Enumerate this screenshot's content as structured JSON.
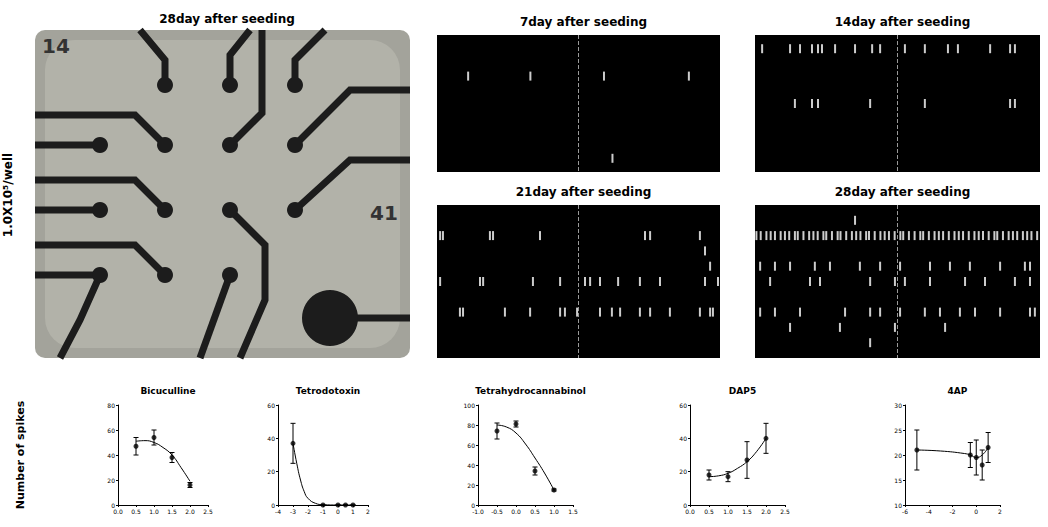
{
  "image_panel": {
    "title": "28day after seeding",
    "row_label": "1.0X10⁵/well",
    "electrode_labels": [
      "14",
      "41"
    ]
  },
  "chart_data": [
    {
      "type": "raster",
      "title": "7day after seeding",
      "xlim": [
        0,
        100
      ],
      "ylim": [
        0,
        10
      ],
      "tick_labels": false,
      "color": "#ffffff",
      "reference_line": 50,
      "points": [
        [
          11,
          3
        ],
        [
          33,
          3
        ],
        [
          59,
          3
        ],
        [
          89,
          3
        ],
        [
          62,
          9
        ]
      ]
    },
    {
      "type": "raster",
      "title": "14day after seeding",
      "xlim": [
        0,
        100
      ],
      "ylim": [
        0,
        10
      ],
      "tick_labels": false,
      "color": "#ffffff",
      "reference_line": 50,
      "points": [
        [
          2.5,
          1
        ],
        [
          12.3,
          1
        ],
        [
          15.8,
          1
        ],
        [
          20,
          1
        ],
        [
          22.1,
          1
        ],
        [
          23.5,
          1
        ],
        [
          28.1,
          1
        ],
        [
          35.1,
          1
        ],
        [
          41.1,
          1
        ],
        [
          43.9,
          1
        ],
        [
          52.6,
          1
        ],
        [
          59.6,
          1
        ],
        [
          67.7,
          1
        ],
        [
          71.2,
          1
        ],
        [
          82.5,
          1
        ],
        [
          89.5,
          1
        ],
        [
          91.2,
          1
        ],
        [
          14,
          5
        ],
        [
          20,
          5
        ],
        [
          22.1,
          5
        ],
        [
          40.4,
          5
        ],
        [
          59.6,
          5
        ],
        [
          89.5,
          5
        ],
        [
          91.2,
          5
        ]
      ]
    },
    {
      "type": "raster",
      "title": "21day after seeding",
      "xlim": [
        0,
        100
      ],
      "ylim": [
        0,
        10
      ],
      "tick_labels": false,
      "color": "#ffffff",
      "reference_line": 50,
      "points": [
        [
          1.1,
          2
        ],
        [
          2.1,
          2
        ],
        [
          18.7,
          2
        ],
        [
          19.8,
          2
        ],
        [
          36.4,
          2
        ],
        [
          73.5,
          2
        ],
        [
          75.3,
          2
        ],
        [
          92.9,
          2
        ],
        [
          94.7,
          3
        ],
        [
          96.5,
          4
        ],
        [
          1.1,
          5
        ],
        [
          15.2,
          5
        ],
        [
          16.3,
          5
        ],
        [
          33.9,
          5
        ],
        [
          43.5,
          5
        ],
        [
          52.3,
          5
        ],
        [
          54.1,
          5
        ],
        [
          57.6,
          5
        ],
        [
          64,
          5
        ],
        [
          71.7,
          5
        ],
        [
          78.8,
          5
        ],
        [
          94.7,
          5
        ],
        [
          99.3,
          5
        ],
        [
          8.1,
          7
        ],
        [
          9.2,
          7
        ],
        [
          24,
          7
        ],
        [
          32.9,
          7
        ],
        [
          43.5,
          7
        ],
        [
          45.2,
          7
        ],
        [
          49.5,
          7
        ],
        [
          57.6,
          7
        ],
        [
          61.8,
          7
        ],
        [
          64.7,
          7
        ],
        [
          71.7,
          7
        ],
        [
          75.3,
          7
        ],
        [
          82.3,
          7
        ],
        [
          92.9,
          7
        ],
        [
          96.5,
          7
        ],
        [
          97.5,
          7
        ]
      ]
    },
    {
      "type": "raster",
      "title": "28day after seeding",
      "xlim": [
        0,
        100
      ],
      "ylim": [
        0,
        10
      ],
      "tick_labels": false,
      "color": "#ffffff",
      "reference_line": 50,
      "points": [
        [
          35.1,
          1
        ],
        [
          0.5,
          2
        ],
        [
          2,
          2
        ],
        [
          4,
          2
        ],
        [
          5.5,
          2
        ],
        [
          7,
          2
        ],
        [
          9,
          2
        ],
        [
          10.5,
          2
        ],
        [
          12,
          2
        ],
        [
          14,
          2
        ],
        [
          15,
          2
        ],
        [
          17,
          2
        ],
        [
          19,
          2
        ],
        [
          20.5,
          2
        ],
        [
          22,
          2
        ],
        [
          24,
          2
        ],
        [
          25,
          2
        ],
        [
          27,
          2
        ],
        [
          29,
          2
        ],
        [
          30,
          2
        ],
        [
          32,
          2
        ],
        [
          34,
          2
        ],
        [
          35.5,
          2
        ],
        [
          37,
          2
        ],
        [
          39,
          2
        ],
        [
          40,
          2
        ],
        [
          42,
          2
        ],
        [
          44,
          2
        ],
        [
          45.5,
          2
        ],
        [
          47,
          2
        ],
        [
          49,
          2
        ],
        [
          51,
          2
        ],
        [
          52,
          2
        ],
        [
          54,
          2
        ],
        [
          56,
          2
        ],
        [
          58,
          2
        ],
        [
          59,
          2
        ],
        [
          61,
          2
        ],
        [
          63,
          2
        ],
        [
          64.5,
          2
        ],
        [
          66,
          2
        ],
        [
          68,
          2
        ],
        [
          70,
          2
        ],
        [
          71.5,
          2
        ],
        [
          73,
          2
        ],
        [
          75,
          2
        ],
        [
          77,
          2
        ],
        [
          78.5,
          2
        ],
        [
          80,
          2
        ],
        [
          82,
          2
        ],
        [
          84,
          2
        ],
        [
          85,
          2
        ],
        [
          87,
          2
        ],
        [
          89,
          2
        ],
        [
          90.5,
          2
        ],
        [
          92,
          2
        ],
        [
          94,
          2
        ],
        [
          95.5,
          2
        ],
        [
          97,
          2
        ],
        [
          99,
          2
        ],
        [
          1.8,
          4
        ],
        [
          7,
          4
        ],
        [
          12.3,
          4
        ],
        [
          21,
          4
        ],
        [
          26.3,
          4
        ],
        [
          36.8,
          4
        ],
        [
          43.9,
          4
        ],
        [
          50.9,
          4
        ],
        [
          61.4,
          4
        ],
        [
          68.4,
          4
        ],
        [
          75.4,
          4
        ],
        [
          86,
          4
        ],
        [
          94.7,
          4
        ],
        [
          96.5,
          4
        ],
        [
          5.3,
          5
        ],
        [
          19.3,
          5
        ],
        [
          22.8,
          5
        ],
        [
          40.4,
          5
        ],
        [
          49.1,
          5
        ],
        [
          52.6,
          5
        ],
        [
          61.4,
          5
        ],
        [
          73.7,
          5
        ],
        [
          80.7,
          5
        ],
        [
          91.2,
          5
        ],
        [
          96.5,
          5
        ],
        [
          1.8,
          7
        ],
        [
          7,
          7
        ],
        [
          15.8,
          7
        ],
        [
          31.6,
          7
        ],
        [
          40.4,
          7
        ],
        [
          43.9,
          7
        ],
        [
          50.9,
          7
        ],
        [
          59.6,
          7
        ],
        [
          64.9,
          7
        ],
        [
          71.9,
          7
        ],
        [
          77.2,
          7
        ],
        [
          86,
          7
        ],
        [
          96.5,
          7
        ],
        [
          98.2,
          7
        ],
        [
          12.3,
          8
        ],
        [
          29.8,
          8
        ],
        [
          49.1,
          8
        ],
        [
          66.7,
          8
        ],
        [
          40.4,
          9
        ]
      ]
    },
    {
      "type": "scatter",
      "title": "Bicuculline",
      "ylabel": "Number of spikes",
      "color": "#000000",
      "marker": "circle",
      "line_style": "solid",
      "x": [
        0.5,
        1.0,
        1.5,
        2.0
      ],
      "values": [
        47,
        54,
        38,
        16
      ],
      "errors": [
        7,
        6,
        4,
        2
      ],
      "fit": {
        "x": [
          0.5,
          0.75,
          1.0,
          1.25,
          1.5,
          1.75,
          2.0
        ],
        "values": [
          51,
          51.5,
          50,
          46,
          40,
          30,
          19
        ]
      },
      "xlim": [
        0,
        2.5
      ],
      "xticks": [
        {
          "value": 0,
          "label": "0.0"
        },
        {
          "value": 0.5,
          "label": "0.5"
        },
        {
          "value": 1,
          "label": "1.0"
        },
        {
          "value": 1.5,
          "label": "1.5"
        },
        {
          "value": 2,
          "label": "2.0"
        },
        {
          "value": 2.5,
          "label": "2.5"
        }
      ],
      "ylim": [
        0,
        80
      ],
      "yticks": [
        0,
        20,
        40,
        60,
        80
      ]
    },
    {
      "type": "scatter",
      "title": "Tetrodotoxin",
      "color": "#000000",
      "marker": "circle",
      "line_style": "solid",
      "x": [
        -3,
        -1,
        0,
        0.5,
        1
      ],
      "values": [
        37,
        0,
        0,
        0,
        0
      ],
      "errors": [
        12,
        0,
        0,
        0,
        0
      ],
      "fit": {
        "x": [
          -3,
          -2.75,
          -2.5,
          -2.25,
          -2,
          -1.5,
          -1,
          0,
          1
        ],
        "values": [
          37,
          25,
          15,
          8,
          4,
          1,
          0.2,
          0,
          0
        ]
      },
      "xlim": [
        -4,
        2
      ],
      "xticks": [
        -4,
        -3,
        -2,
        -1,
        0,
        1,
        2
      ],
      "ylim": [
        0,
        60
      ],
      "yticks": [
        0,
        20,
        40,
        60
      ]
    },
    {
      "type": "scatter",
      "title": "Tetrahydrocannabinol",
      "color": "#000000",
      "marker": "circle",
      "line_style": "solid",
      "x": [
        -0.5,
        0,
        0.5,
        1
      ],
      "values": [
        74,
        81,
        34,
        15
      ],
      "errors": [
        8,
        3,
        4,
        1
      ],
      "fit": {
        "x": [
          -0.5,
          -0.25,
          0,
          0.25,
          0.5,
          0.75,
          1.0
        ],
        "values": [
          80,
          78,
          72,
          61,
          47,
          32,
          15
        ]
      },
      "xlim": [
        -1,
        1.5
      ],
      "xticks": [
        {
          "value": -1,
          "label": "-1.0"
        },
        {
          "value": -0.5,
          "label": "-0.5"
        },
        {
          "value": 0,
          "label": "0.0"
        },
        {
          "value": 0.5,
          "label": "0.5"
        },
        {
          "value": 1,
          "label": "1.0"
        },
        {
          "value": 1.5,
          "label": "1.5"
        }
      ],
      "ylim": [
        0,
        100
      ],
      "yticks": [
        0,
        20,
        40,
        60,
        80,
        100
      ]
    },
    {
      "type": "scatter",
      "title": "DAP5",
      "color": "#000000",
      "marker": "circle",
      "line_style": "solid",
      "x": [
        0.5,
        1.0,
        1.5,
        2.0
      ],
      "values": [
        18,
        17,
        27,
        40
      ],
      "errors": [
        3,
        3,
        11,
        9
      ],
      "fit": {
        "x": [
          0.5,
          0.75,
          1.0,
          1.25,
          1.5,
          1.75,
          2.0
        ],
        "values": [
          17,
          17.5,
          19,
          22,
          26,
          32,
          40
        ]
      },
      "xlim": [
        0,
        2.5
      ],
      "xticks": [
        {
          "value": 0,
          "label": "0.0"
        },
        {
          "value": 0.5,
          "label": "0.5"
        },
        {
          "value": 1,
          "label": "1.0"
        },
        {
          "value": 1.5,
          "label": "1.5"
        },
        {
          "value": 2,
          "label": "2.0"
        },
        {
          "value": 2.5,
          "label": "2.5"
        }
      ],
      "ylim": [
        0,
        60
      ],
      "yticks": [
        0,
        20,
        40,
        60
      ]
    },
    {
      "type": "scatter",
      "title": "4AP",
      "color": "#000000",
      "marker": "circle",
      "line_style": "solid",
      "x": [
        -5,
        -0.5,
        0,
        0.5,
        1
      ],
      "values": [
        21,
        20,
        19.5,
        18,
        21.5
      ],
      "errors": [
        4,
        2.5,
        3.5,
        3,
        3
      ],
      "fit": {
        "x": [
          -5,
          -3,
          -1,
          -0.5,
          0,
          0.5,
          1
        ],
        "values": [
          21,
          20.8,
          20.3,
          20,
          19.5,
          20,
          21.5
        ]
      },
      "xlim": [
        -6,
        2
      ],
      "xticks": [
        -6,
        -4,
        -2,
        0,
        2
      ],
      "ylim": [
        10,
        30
      ],
      "yticks": [
        10,
        15,
        20,
        25,
        30
      ]
    }
  ]
}
